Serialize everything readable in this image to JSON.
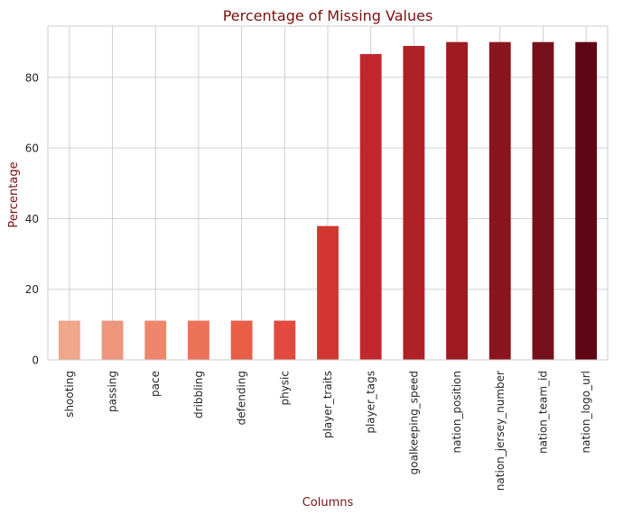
{
  "chart_data": {
    "type": "bar",
    "title": "Percentage of Missing Values",
    "xlabel": "Columns",
    "ylabel": "Percentage",
    "categories": [
      "shooting",
      "passing",
      "pace",
      "dribbling",
      "defending",
      "physic",
      "player_traits",
      "player_tags",
      "goalkeeping_speed",
      "nation_position",
      "nation_jersey_number",
      "nation_team_id",
      "nation_logo_url"
    ],
    "values": [
      11.1,
      11.1,
      11.1,
      11.1,
      11.1,
      11.1,
      37.9,
      86.6,
      88.9,
      90.0,
      90.0,
      90.0,
      90.0
    ],
    "ylim": [
      0,
      94.5
    ],
    "yticks": [
      0,
      20,
      40,
      60,
      80
    ],
    "grid": true,
    "colors": {
      "title": "#7a1010",
      "axis_label": "#7a1010",
      "tick_text": "#262626",
      "grid": "#d0d0d0",
      "spine": "#cccccc",
      "bars": [
        "#f0a68a",
        "#ee967b",
        "#ed866a",
        "#eb7359",
        "#e85e47",
        "#e14a3d",
        "#d13631",
        "#c2272d",
        "#b02027",
        "#9d1a22",
        "#8a151e",
        "#75101a",
        "#5f0513"
      ]
    }
  }
}
